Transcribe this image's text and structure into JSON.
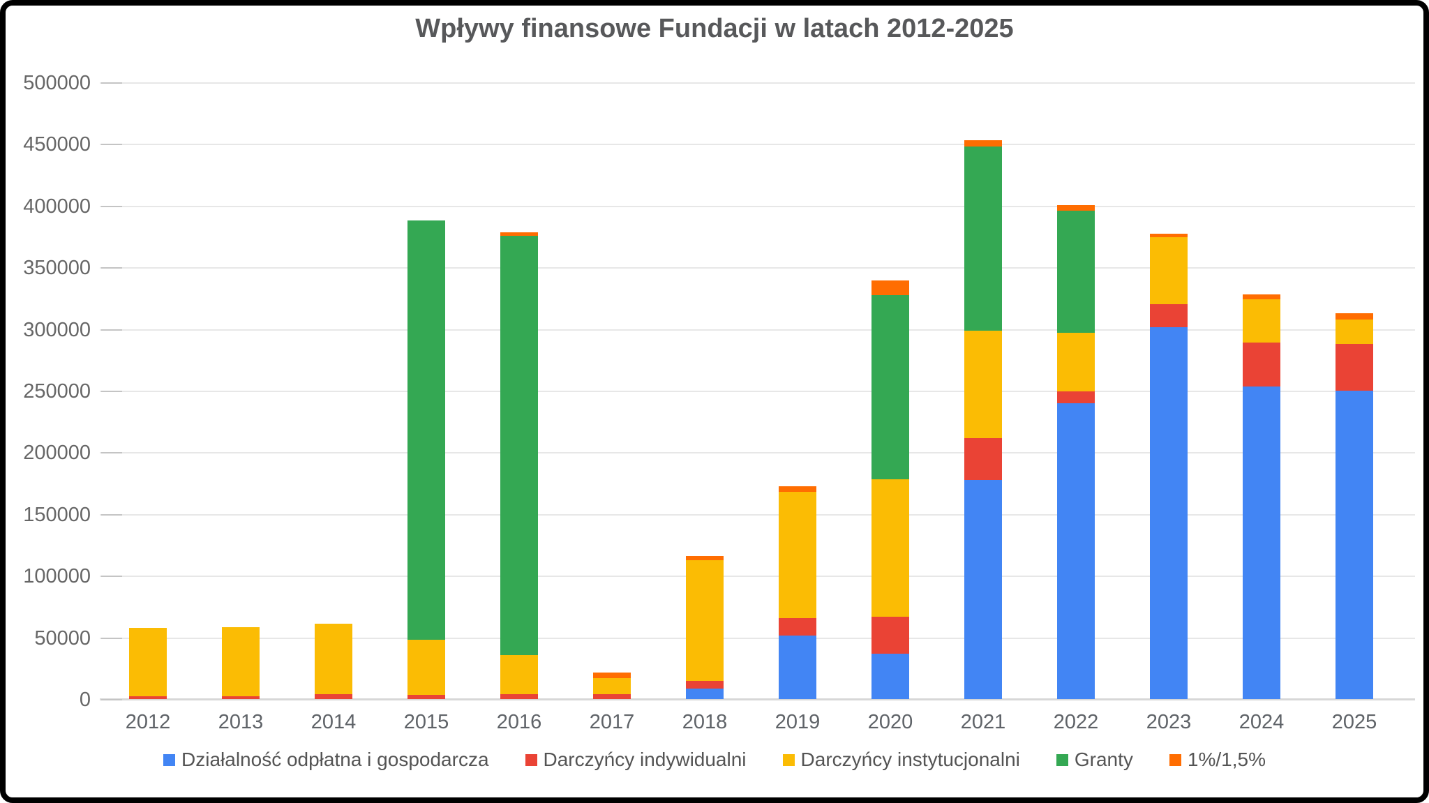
{
  "title": "Wpływy finansowe Fundacji w latach 2012-2025",
  "colors": {
    "blue": "#4285F4",
    "red": "#EA4335",
    "yellow": "#FBBC04",
    "green": "#34A853",
    "orange": "#FF6D01",
    "gridline": "#e7e7e7",
    "baseline": "#d7d7d7",
    "axis_text": "#666666",
    "title_text": "#57585a",
    "legend_text": "#545454"
  },
  "chart_data": {
    "type": "bar",
    "stacked": true,
    "title": "Wpływy finansowe Fundacji w latach 2012-2025",
    "xlabel": "",
    "ylabel": "",
    "grid": true,
    "legend_position": "bottom",
    "ylim": [
      0,
      500000
    ],
    "y_ticks": [
      0,
      50000,
      100000,
      150000,
      200000,
      250000,
      300000,
      350000,
      400000,
      450000,
      500000
    ],
    "y_tick_labels": [
      "0",
      "50000",
      "100000",
      "150000",
      "200000",
      "250000",
      "300000",
      "350000",
      "400000",
      "450000",
      "500000"
    ],
    "categories": [
      "2012",
      "2013",
      "2014",
      "2015",
      "2016",
      "2017",
      "2018",
      "2019",
      "2020",
      "2021",
      "2022",
      "2023",
      "2024",
      "2025"
    ],
    "series": [
      {
        "name": "Działalność odpłatna i gospodarcza",
        "color_key": "blue",
        "values": [
          0,
          0,
          0,
          0,
          0,
          0,
          8500,
          51500,
          37000,
          177700,
          239900,
          301600,
          253500,
          250100
        ]
      },
      {
        "name": "Darczyńcy indywidualni",
        "color_key": "red",
        "values": [
          2300,
          2300,
          4000,
          3400,
          4000,
          4000,
          6200,
          14100,
          29800,
          33900,
          9600,
          18600,
          35600,
          37900
        ]
      },
      {
        "name": "Darczyńcy instytucjonalni",
        "color_key": "yellow",
        "values": [
          55400,
          56000,
          57100,
          44700,
          31600,
          13000,
          97900,
          102400,
          111400,
          87100,
          47500,
          54300,
          35100,
          19800
        ]
      },
      {
        "name": "Granty",
        "color_key": "green",
        "values": [
          0,
          0,
          0,
          340000,
          340000,
          0,
          0,
          0,
          149400,
          149400,
          99000,
          0,
          0,
          0
        ]
      },
      {
        "name": "1%/1,5%",
        "color_key": "orange",
        "values": [
          0,
          0,
          0,
          0,
          2900,
          4500,
          3400,
          4500,
          11900,
          5100,
          4600,
          2900,
          3900,
          5100
        ]
      }
    ]
  }
}
